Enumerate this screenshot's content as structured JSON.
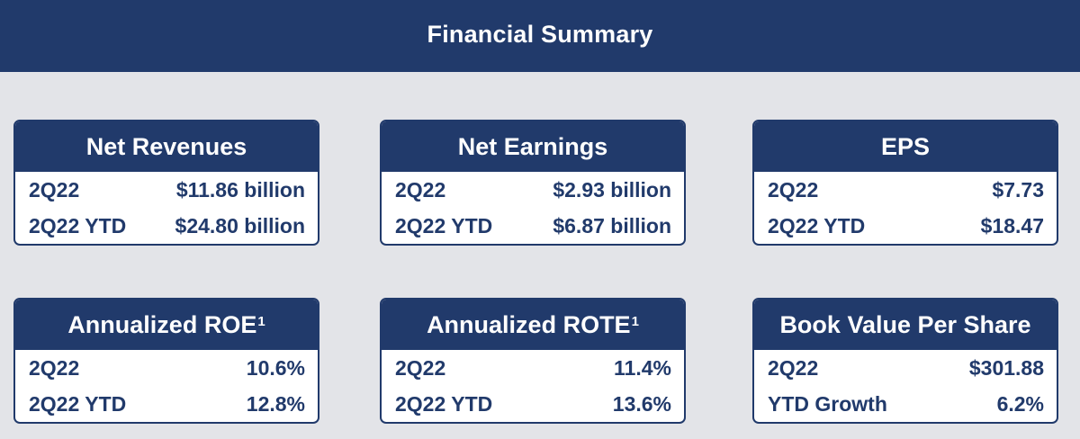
{
  "header": {
    "title": "Financial Summary"
  },
  "cards": [
    {
      "title": "Net Revenues",
      "sup": "",
      "rows": [
        {
          "label": "2Q22",
          "value": "$11.86 billion"
        },
        {
          "label": "2Q22 YTD",
          "value": "$24.80 billion"
        }
      ]
    },
    {
      "title": "Net Earnings",
      "sup": "",
      "rows": [
        {
          "label": "2Q22",
          "value": "$2.93 billion"
        },
        {
          "label": "2Q22 YTD",
          "value": "$6.87 billion"
        }
      ]
    },
    {
      "title": "EPS",
      "sup": "",
      "rows": [
        {
          "label": "2Q22",
          "value": "$7.73"
        },
        {
          "label": "2Q22 YTD",
          "value": "$18.47"
        }
      ]
    },
    {
      "title": "Annualized ROE",
      "sup": "1",
      "rows": [
        {
          "label": "2Q22",
          "value": "10.6%"
        },
        {
          "label": "2Q22 YTD",
          "value": "12.8%"
        }
      ]
    },
    {
      "title": "Annualized ROTE",
      "sup": "1",
      "rows": [
        {
          "label": "2Q22",
          "value": "11.4%"
        },
        {
          "label": "2Q22 YTD",
          "value": "13.6%"
        }
      ]
    },
    {
      "title": "Book Value Per Share",
      "sup": "",
      "rows": [
        {
          "label": "2Q22",
          "value": "$301.88"
        },
        {
          "label": "YTD Growth",
          "value": "6.2%"
        }
      ]
    }
  ]
}
